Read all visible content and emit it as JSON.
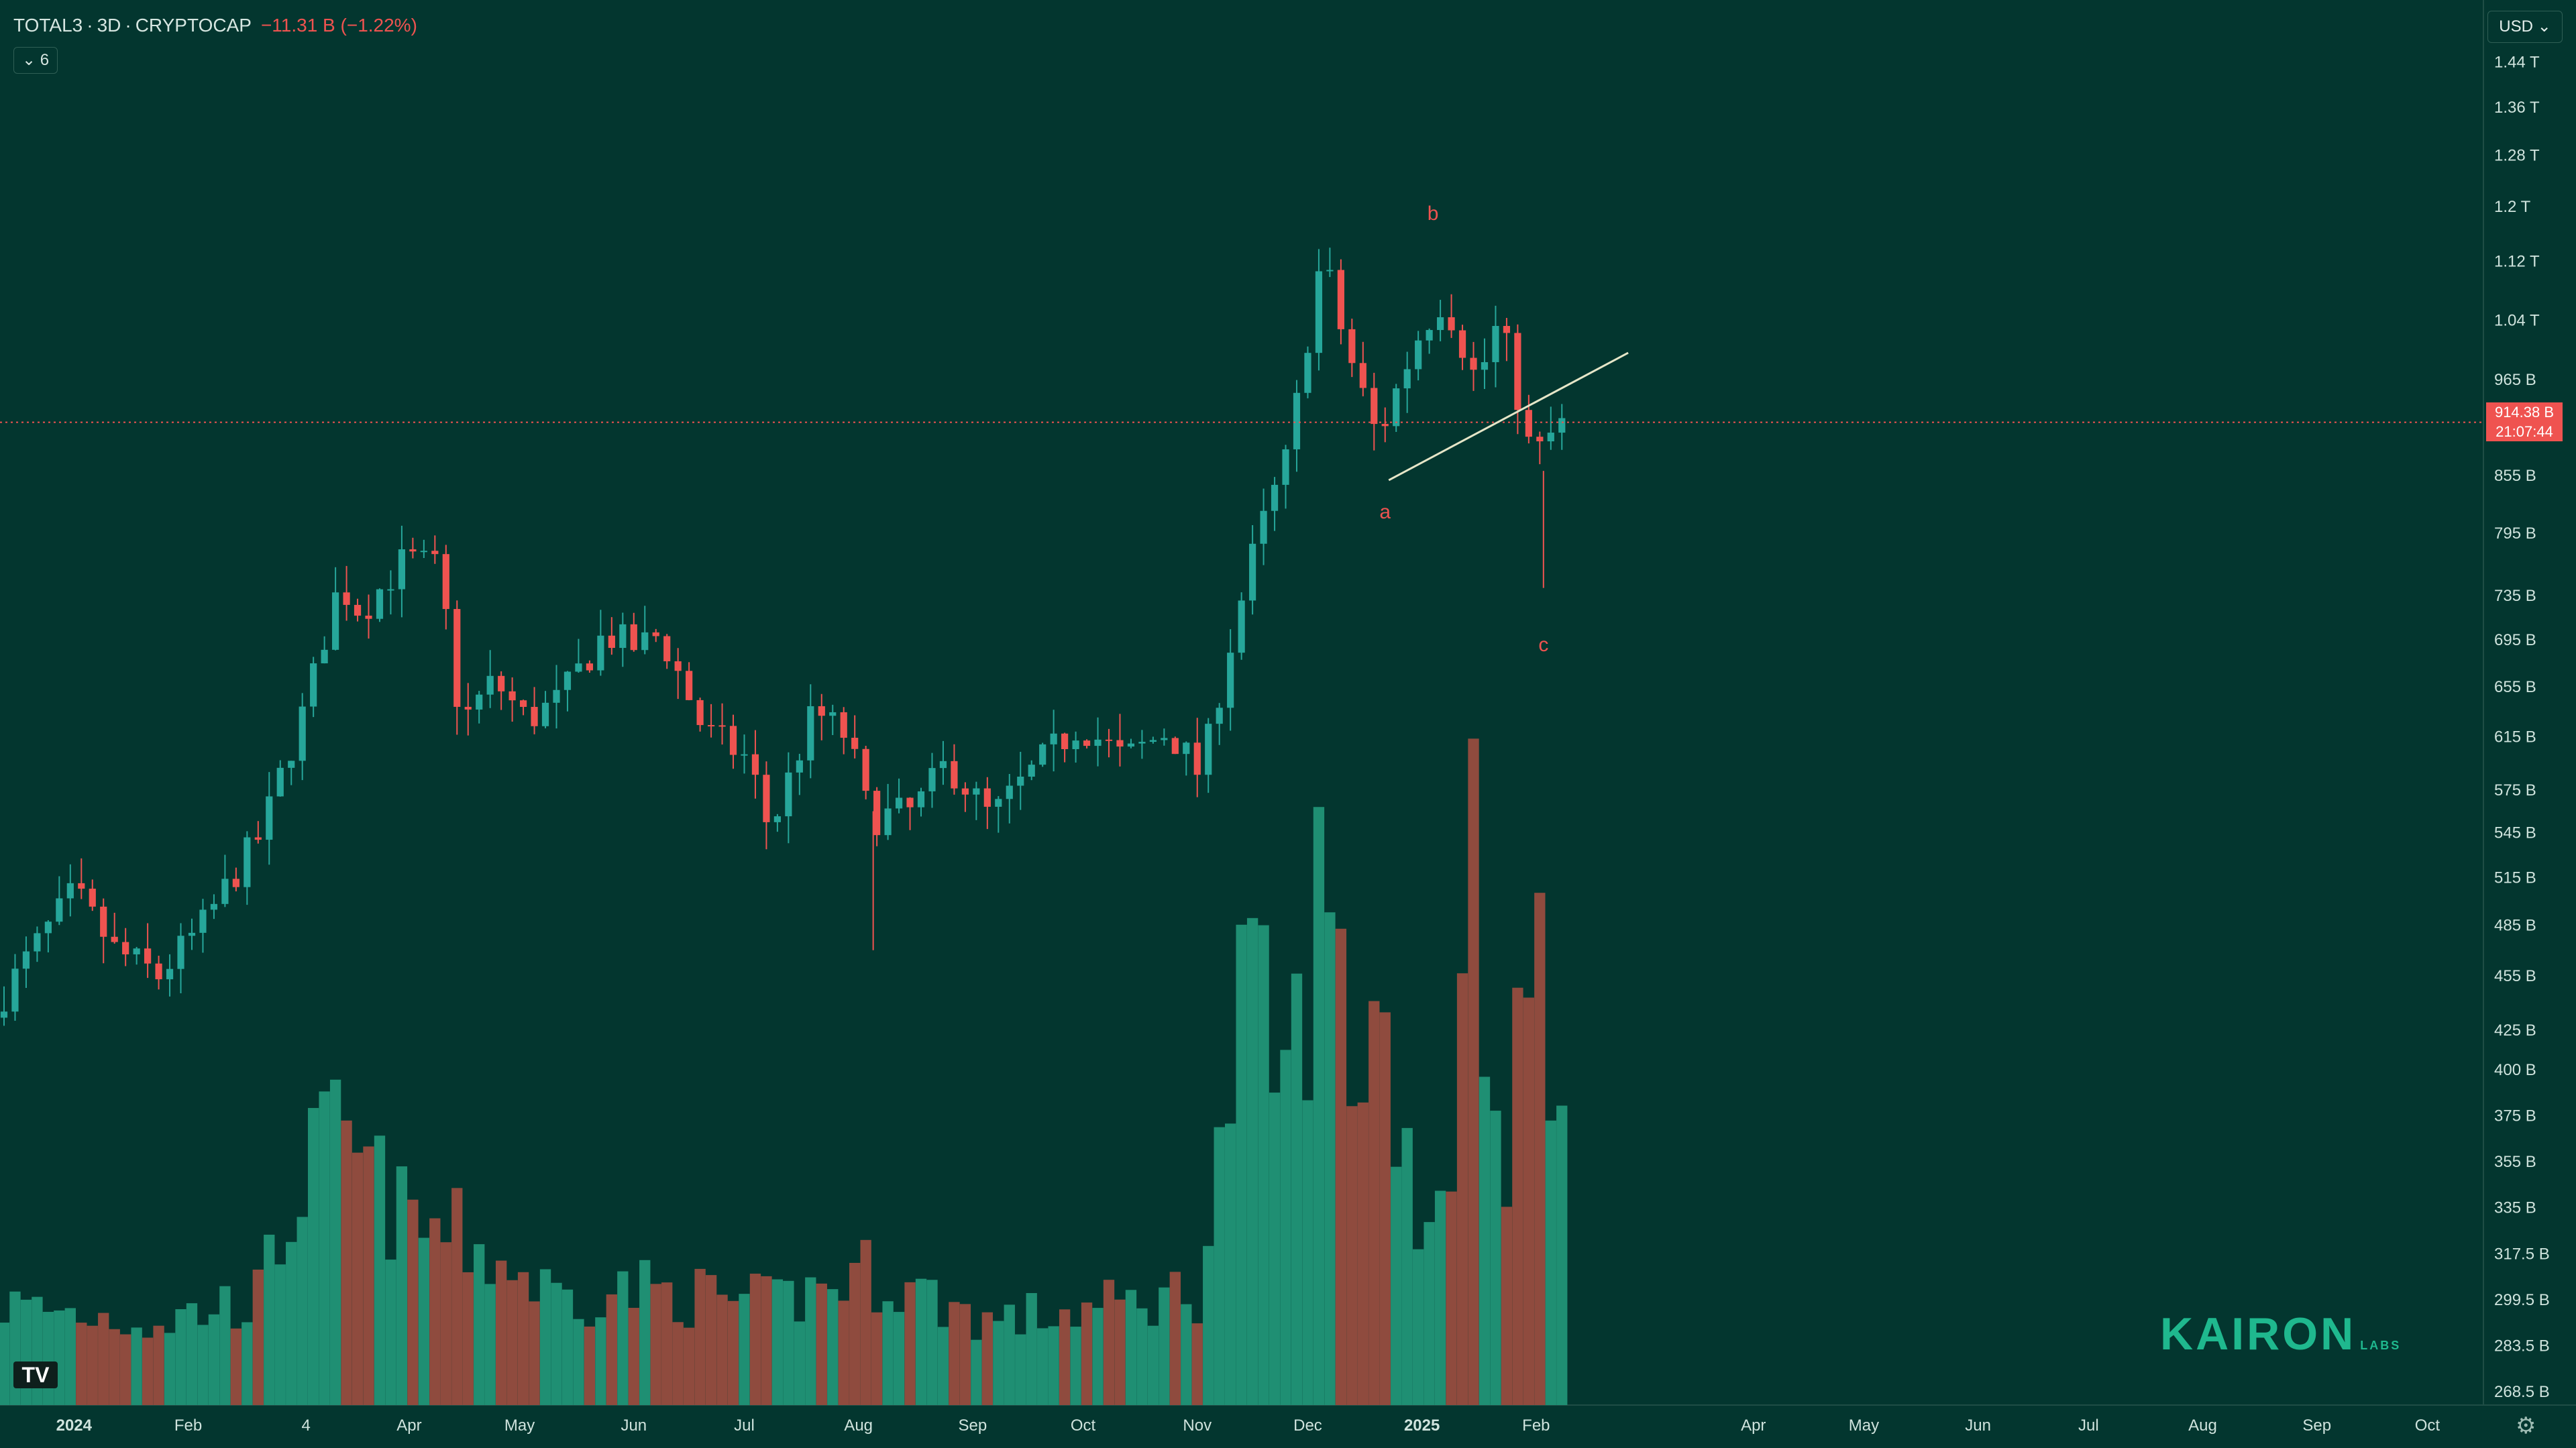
{
  "header": {
    "symbol": "TOTAL3",
    "interval": "3D",
    "exchange": "CRYPTOCAP",
    "change": "−11.31 B (−1.22%)",
    "indicator_count": "6"
  },
  "currency_button": "USD",
  "price_tag": {
    "price": "914.38 B",
    "countdown": "21:07:44"
  },
  "branding": {
    "logo": "KAIRON",
    "logo_sub": "LABS",
    "tv_logo": "TV"
  },
  "icons": {
    "chevron": "chevron-down-icon",
    "settings": "gear-icon"
  },
  "colors": {
    "up": "#26a69a",
    "down": "#ef5350",
    "volume_up": "#1f8f73",
    "volume_down": "#8f4b3e",
    "trendline": "#e6e6c8"
  },
  "chart_data": {
    "type": "candlestick",
    "y_scale": "log",
    "ylim_billions": [
      266,
      1480
    ],
    "y_ticks": [
      "1.44 T",
      "1.36 T",
      "1.28 T",
      "1.2 T",
      "1.12 T",
      "1.04 T",
      "965 B",
      "855 B",
      "795 B",
      "735 B",
      "695 B",
      "655 B",
      "615 B",
      "575 B",
      "545 B",
      "515 B",
      "485 B",
      "455 B",
      "425 B",
      "400 B",
      "375 B",
      "355 B",
      "335 B",
      "317.5 B",
      "299.5 B",
      "283.5 B",
      "268.5 B"
    ],
    "y_tick_values_billions": [
      1440,
      1360,
      1280,
      1200,
      1120,
      1040,
      965,
      855,
      795,
      735,
      695,
      655,
      615,
      575,
      545,
      515,
      485,
      455,
      425,
      400,
      375,
      355,
      335,
      317.5,
      299.5,
      283.5,
      268.5
    ],
    "x_ticks": [
      {
        "label": "2024",
        "date": "2024-01-01",
        "bold": true
      },
      {
        "label": "Feb",
        "date": "2024-02-01"
      },
      {
        "label": "4",
        "date": "2024-03-04"
      },
      {
        "label": "Apr",
        "date": "2024-04-01"
      },
      {
        "label": "May",
        "date": "2024-05-01"
      },
      {
        "label": "Jun",
        "date": "2024-06-01"
      },
      {
        "label": "Jul",
        "date": "2024-07-01"
      },
      {
        "label": "Aug",
        "date": "2024-08-01"
      },
      {
        "label": "Sep",
        "date": "2024-09-01"
      },
      {
        "label": "Oct",
        "date": "2024-10-01"
      },
      {
        "label": "Nov",
        "date": "2024-11-01"
      },
      {
        "label": "Dec",
        "date": "2024-12-01"
      },
      {
        "label": "2025",
        "date": "2025-01-01",
        "bold": true
      },
      {
        "label": "Feb",
        "date": "2025-02-01"
      },
      {
        "label": "Apr",
        "date": "2025-04-01"
      },
      {
        "label": "May",
        "date": "2025-05-01"
      },
      {
        "label": "Jun",
        "date": "2025-06-01"
      },
      {
        "label": "Jul",
        "date": "2025-07-01"
      },
      {
        "label": "Aug",
        "date": "2025-08-01"
      },
      {
        "label": "Sep",
        "date": "2025-09-01"
      },
      {
        "label": "Oct",
        "date": "2025-10-01"
      }
    ],
    "candle_interval_days": 3,
    "last_price_billions": 914.38,
    "annotations": [
      {
        "text": "a",
        "date": "2024-12-22",
        "value_billions": 810
      },
      {
        "text": "b",
        "date": "2025-01-04",
        "value_billions": 1180
      },
      {
        "text": "c",
        "date": "2025-02-03",
        "value_billions": 685
      }
    ],
    "trendline": [
      {
        "date": "2024-12-23",
        "value_billions": 850
      },
      {
        "date": "2025-02-26",
        "value_billions": 998
      }
    ],
    "anchors": [
      {
        "date": "2023-12-13",
        "close": 445
      },
      {
        "date": "2024-01-01",
        "close": 505
      },
      {
        "date": "2024-01-12",
        "close": 470
      },
      {
        "date": "2024-01-24",
        "close": 455
      },
      {
        "date": "2024-02-05",
        "close": 485
      },
      {
        "date": "2024-02-21",
        "close": 545
      },
      {
        "date": "2024-03-04",
        "close": 640
      },
      {
        "date": "2024-03-13",
        "close": 745
      },
      {
        "date": "2024-03-19",
        "close": 720
      },
      {
        "date": "2024-03-31",
        "close": 770
      },
      {
        "date": "2024-04-09",
        "close": 760
      },
      {
        "date": "2024-04-15",
        "close": 625
      },
      {
        "date": "2024-04-24",
        "close": 660
      },
      {
        "date": "2024-05-03",
        "close": 628
      },
      {
        "date": "2024-05-12",
        "close": 645
      },
      {
        "date": "2024-05-24",
        "close": 700
      },
      {
        "date": "2024-06-02",
        "close": 688
      },
      {
        "date": "2024-06-08",
        "close": 700
      },
      {
        "date": "2024-06-20",
        "close": 620
      },
      {
        "date": "2024-07-02",
        "close": 598
      },
      {
        "date": "2024-07-08",
        "close": 545
      },
      {
        "date": "2024-07-20",
        "close": 635
      },
      {
        "date": "2024-07-29",
        "close": 615
      },
      {
        "date": "2024-08-04",
        "close": 555
      },
      {
        "date": "2024-08-16",
        "close": 560
      },
      {
        "date": "2024-08-25",
        "close": 595
      },
      {
        "date": "2024-09-06",
        "close": 555
      },
      {
        "date": "2024-09-21",
        "close": 600
      },
      {
        "date": "2024-09-30",
        "close": 625
      },
      {
        "date": "2024-10-12",
        "close": 598
      },
      {
        "date": "2024-10-24",
        "close": 620
      },
      {
        "date": "2024-11-02",
        "close": 585
      },
      {
        "date": "2024-11-08",
        "close": 665
      },
      {
        "date": "2024-11-17",
        "close": 785
      },
      {
        "date": "2024-11-26",
        "close": 880
      },
      {
        "date": "2024-12-05",
        "close": 1130
      },
      {
        "date": "2024-12-11",
        "close": 1010
      },
      {
        "date": "2024-12-20",
        "close": 895
      },
      {
        "date": "2025-01-01",
        "close": 1030
      },
      {
        "date": "2025-01-07",
        "close": 1070
      },
      {
        "date": "2025-01-16",
        "close": 960
      },
      {
        "date": "2025-01-22",
        "close": 1040
      },
      {
        "date": "2025-01-31",
        "close": 870
      },
      {
        "date": "2025-02-06",
        "close": 905
      },
      {
        "date": "2025-02-10",
        "close": 914
      }
    ],
    "volume_anchors": [
      {
        "date": "2023-12-13",
        "value_billions": 12
      },
      {
        "date": "2024-01-24",
        "value_billions": 10
      },
      {
        "date": "2024-02-20",
        "value_billions": 13
      },
      {
        "date": "2024-03-04",
        "value_billions": 28
      },
      {
        "date": "2024-03-13",
        "value_billions": 32
      },
      {
        "date": "2024-03-31",
        "value_billions": 22
      },
      {
        "date": "2024-04-15",
        "value_billions": 20
      },
      {
        "date": "2024-05-12",
        "value_billions": 13
      },
      {
        "date": "2024-06-02",
        "value_billions": 14
      },
      {
        "date": "2024-07-08",
        "value_billions": 12
      },
      {
        "date": "2024-08-04",
        "value_billions": 16
      },
      {
        "date": "2024-09-06",
        "value_billions": 10
      },
      {
        "date": "2024-10-12",
        "value_billions": 12
      },
      {
        "date": "2024-11-02",
        "value_billions": 14
      },
      {
        "date": "2024-11-08",
        "value_billions": 32
      },
      {
        "date": "2024-11-14",
        "value_billions": 50
      },
      {
        "date": "2024-11-26",
        "value_billions": 38
      },
      {
        "date": "2024-12-05",
        "value_billions": 62
      },
      {
        "date": "2024-12-14",
        "value_billions": 40
      },
      {
        "date": "2024-12-20",
        "value_billions": 48
      },
      {
        "date": "2025-01-01",
        "value_billions": 22
      },
      {
        "date": "2025-01-10",
        "value_billions": 30
      },
      {
        "date": "2025-01-13",
        "value_billions": 80
      },
      {
        "date": "2025-01-22",
        "value_billions": 28
      },
      {
        "date": "2025-02-03",
        "value_billions": 58
      },
      {
        "date": "2025-02-10",
        "value_billions": 22
      }
    ]
  }
}
